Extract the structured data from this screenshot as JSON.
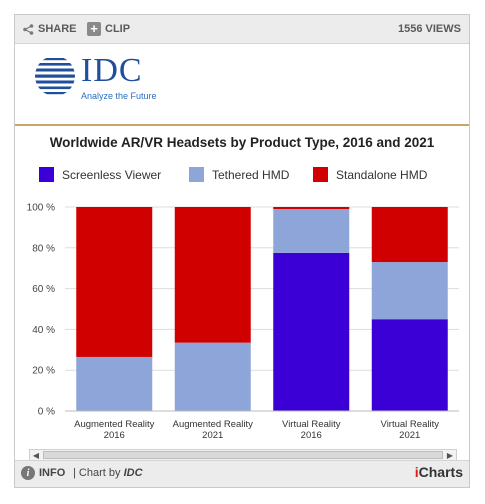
{
  "topbar": {
    "share_label": "SHARE",
    "clip_label": "CLIP",
    "views_label": "1556 VIEWS"
  },
  "logo": {
    "text": "IDC",
    "tagline": "Analyze the Future"
  },
  "colors": {
    "screenless": "#3a00d6",
    "tethered": "#8ea5d9",
    "standalone": "#d00000",
    "grid": "#dddddd"
  },
  "chart_data": {
    "type": "bar",
    "stacked": true,
    "title": "Worldwide AR/VR Headsets by Product Type, 2016 and 2021",
    "categories": [
      [
        "Augmented Reality",
        "2016"
      ],
      [
        "Augmented Reality",
        "2021"
      ],
      [
        "Virtual Reality",
        "2016"
      ],
      [
        "Virtual Reality",
        "2021"
      ]
    ],
    "series": [
      {
        "name": "Screenless Viewer",
        "color": "#3a00d6",
        "values": [
          0,
          0,
          77.5,
          45
        ]
      },
      {
        "name": "Tethered HMD",
        "color": "#8ea5d9",
        "values": [
          26.5,
          33.5,
          21.5,
          28
        ]
      },
      {
        "name": "Standalone HMD",
        "color": "#d00000",
        "values": [
          73.5,
          66.5,
          1,
          27
        ]
      }
    ],
    "yticks": [
      "0 %",
      "20 %",
      "40 %",
      "60 %",
      "80 %",
      "100 %"
    ],
    "ylim": [
      0,
      100
    ],
    "legend_position": "top",
    "grid": true
  },
  "footer": {
    "info_label": "INFO",
    "credit_prefix": "| Chart by",
    "credit_brand": "IDC",
    "brand_i": "i",
    "brand_rest": "Charts"
  }
}
